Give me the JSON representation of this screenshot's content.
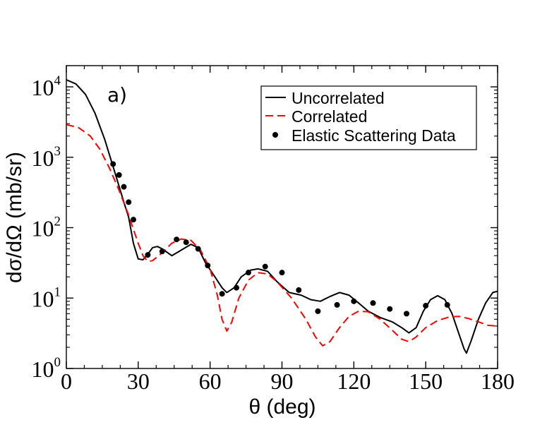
{
  "chart_data": {
    "type": "line",
    "panel_label": "a)",
    "xlabel": "θ (deg)",
    "ylabel": "dσ/dΩ (mb/sr)",
    "xlim": [
      0,
      180
    ],
    "ylim": [
      1,
      20000
    ],
    "yscale": "log",
    "x_ticks": [
      0,
      30,
      60,
      90,
      120,
      150,
      180
    ],
    "x_tick_labels": [
      "0",
      "30",
      "60",
      "90",
      "120",
      "150",
      "180"
    ],
    "y_ticks": [
      {
        "value": 1,
        "base": "10",
        "exp": "0"
      },
      {
        "value": 10,
        "base": "10",
        "exp": "1"
      },
      {
        "value": 100,
        "base": "10",
        "exp": "2"
      },
      {
        "value": 1000,
        "base": "10",
        "exp": "3"
      },
      {
        "value": 10000,
        "base": "10",
        "exp": "4"
      }
    ],
    "legend_position": "top-right",
    "series": [
      {
        "name": "Uncorrelated",
        "style": "solid",
        "color": "#000000",
        "points": [
          [
            0,
            12600
          ],
          [
            4,
            11000
          ],
          [
            8,
            7800
          ],
          [
            12,
            4200
          ],
          [
            16,
            1800
          ],
          [
            20,
            650
          ],
          [
            24,
            230
          ],
          [
            26,
            140
          ],
          [
            28,
            60
          ],
          [
            30,
            36
          ],
          [
            32,
            35
          ],
          [
            34,
            42
          ],
          [
            36,
            52
          ],
          [
            38,
            54
          ],
          [
            40,
            50
          ],
          [
            44,
            40
          ],
          [
            48,
            48
          ],
          [
            52,
            58
          ],
          [
            55,
            52
          ],
          [
            58,
            32
          ],
          [
            62,
            20
          ],
          [
            65,
            14
          ],
          [
            67,
            12
          ],
          [
            70,
            14
          ],
          [
            73,
            20
          ],
          [
            77,
            25
          ],
          [
            80,
            26
          ],
          [
            84,
            24
          ],
          [
            88,
            17
          ],
          [
            93,
            12
          ],
          [
            98,
            11
          ],
          [
            102,
            9.5
          ],
          [
            106,
            9
          ],
          [
            110,
            10.5
          ],
          [
            114,
            12
          ],
          [
            118,
            11
          ],
          [
            122,
            8.5
          ],
          [
            126,
            6.5
          ],
          [
            131,
            5.3
          ],
          [
            136,
            4.6
          ],
          [
            140,
            3.8
          ],
          [
            143,
            3.2
          ],
          [
            146,
            3.8
          ],
          [
            149,
            6.5
          ],
          [
            152,
            9.5
          ],
          [
            155,
            10.8
          ],
          [
            158,
            9.5
          ],
          [
            161,
            6
          ],
          [
            164,
            3
          ],
          [
            166,
            1.9
          ],
          [
            167,
            1.65
          ],
          [
            169,
            2.5
          ],
          [
            172,
            5
          ],
          [
            175,
            8.5
          ],
          [
            178,
            12
          ],
          [
            180,
            12.5
          ]
        ]
      },
      {
        "name": "Correlated",
        "style": "dashed",
        "color": "#ff0000",
        "points": [
          [
            0,
            2900
          ],
          [
            5,
            2650
          ],
          [
            10,
            2000
          ],
          [
            14,
            1300
          ],
          [
            18,
            700
          ],
          [
            22,
            340
          ],
          [
            26,
            150
          ],
          [
            28,
            95
          ],
          [
            30,
            60
          ],
          [
            32,
            40
          ],
          [
            34,
            33
          ],
          [
            36,
            34
          ],
          [
            40,
            44
          ],
          [
            44,
            60
          ],
          [
            48,
            69
          ],
          [
            52,
            66
          ],
          [
            56,
            48
          ],
          [
            60,
            26
          ],
          [
            63,
            11
          ],
          [
            65,
            5
          ],
          [
            67,
            3.4
          ],
          [
            69,
            4.5
          ],
          [
            72,
            10
          ],
          [
            76,
            18
          ],
          [
            80,
            23
          ],
          [
            84,
            22
          ],
          [
            88,
            17
          ],
          [
            94,
            10
          ],
          [
            100,
            5
          ],
          [
            104,
            2.8
          ],
          [
            107,
            2.1
          ],
          [
            110,
            2.4
          ],
          [
            114,
            3.8
          ],
          [
            118,
            5.5
          ],
          [
            122,
            6.5
          ],
          [
            126,
            6.4
          ],
          [
            131,
            5
          ],
          [
            136,
            3.5
          ],
          [
            140,
            2.6
          ],
          [
            143,
            2.4
          ],
          [
            146,
            2.8
          ],
          [
            150,
            3.8
          ],
          [
            155,
            4.8
          ],
          [
            160,
            5.4
          ],
          [
            164,
            5.5
          ],
          [
            168,
            5.1
          ],
          [
            172,
            4.6
          ],
          [
            176,
            4.1
          ],
          [
            180,
            4
          ]
        ]
      },
      {
        "name": "Elastic Scattering Data",
        "style": "markers",
        "color": "#000000",
        "points": [
          [
            19.5,
            800
          ],
          [
            22,
            560
          ],
          [
            24,
            380
          ],
          [
            26,
            230
          ],
          [
            28,
            130
          ],
          [
            34,
            41
          ],
          [
            40,
            46
          ],
          [
            46,
            68
          ],
          [
            50,
            62
          ],
          [
            55,
            50
          ],
          [
            59,
            29
          ],
          [
            65,
            11.5
          ],
          [
            71,
            14
          ],
          [
            76,
            23
          ],
          [
            83,
            28
          ],
          [
            90,
            23
          ],
          [
            97,
            13
          ],
          [
            105,
            6.5
          ],
          [
            113,
            8
          ],
          [
            120,
            9
          ],
          [
            128,
            8.5
          ],
          [
            135,
            7
          ],
          [
            142,
            6
          ],
          [
            150,
            7.8
          ],
          [
            159,
            8
          ]
        ]
      }
    ]
  }
}
